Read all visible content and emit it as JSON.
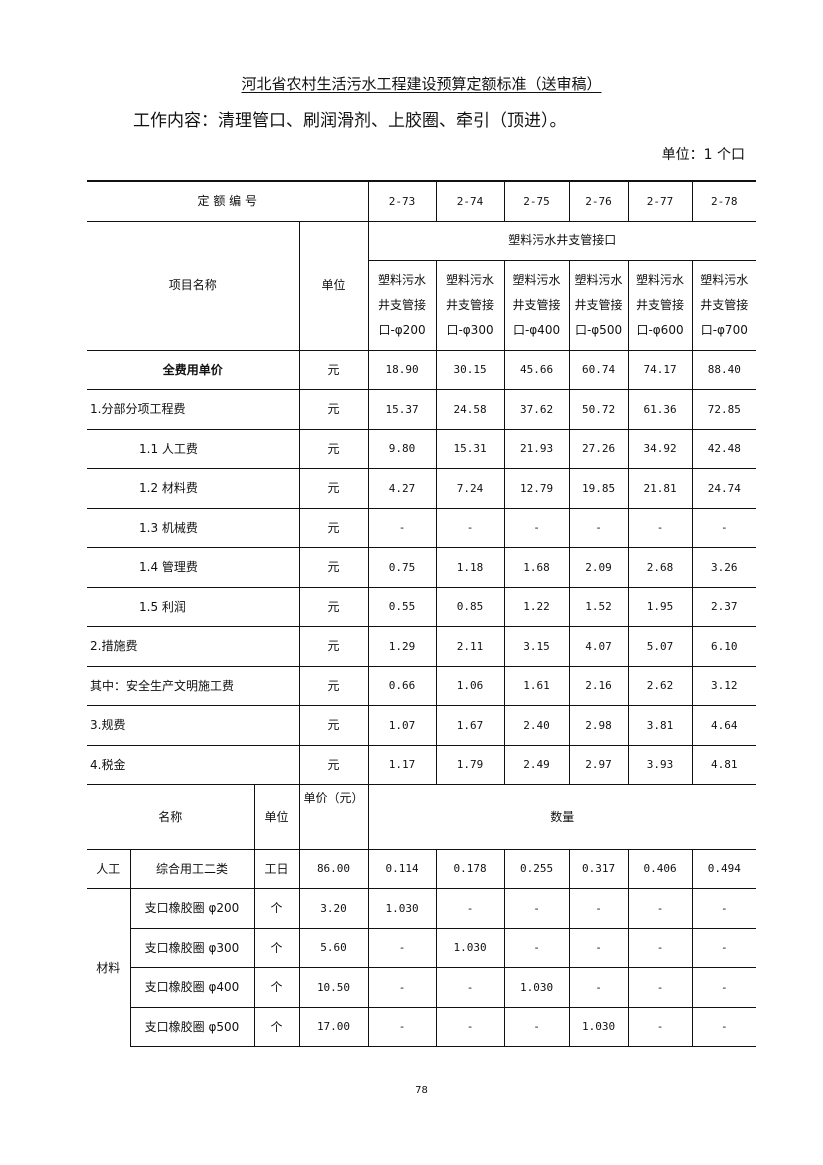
{
  "title": "河北省农村生活污水工程建设预算定额标准（送审稿）",
  "work_content": "工作内容：清理管口、刷润滑剂、上胶圈、牵引（顶进）。",
  "unit_note": "单位：1 个口",
  "header": {
    "code_label": "定 额 编 号",
    "codes": [
      "2-73",
      "2-74",
      "2-75",
      "2-76",
      "2-77",
      "2-78"
    ],
    "item_label": "项目名称",
    "unit_label": "单位",
    "group_label": "塑料污水井支管接口",
    "sub_items": [
      [
        "塑料污水",
        "井支管接",
        "口-φ200"
      ],
      [
        "塑料污水",
        "井支管接",
        "口-φ300"
      ],
      [
        "塑料污水",
        "井支管接",
        "口-φ400"
      ],
      [
        "塑料污水",
        "井支管接",
        "口-φ500"
      ],
      [
        "塑料污水",
        "井支管接",
        "口-φ600"
      ],
      [
        "塑料污水",
        "井支管接",
        "口-φ700"
      ]
    ]
  },
  "cost_rows": [
    {
      "name": "全费用单价",
      "unit": "元",
      "values": [
        "18.90",
        "30.15",
        "45.66",
        "60.74",
        "74.17",
        "88.40"
      ]
    },
    {
      "name": "1.分部分项工程费",
      "unit": "元",
      "values": [
        "15.37",
        "24.58",
        "37.62",
        "50.72",
        "61.36",
        "72.85"
      ]
    },
    {
      "name": "1.1 人工费",
      "unit": "元",
      "values": [
        "9.80",
        "15.31",
        "21.93",
        "27.26",
        "34.92",
        "42.48"
      ]
    },
    {
      "name": "1.2 材料费",
      "unit": "元",
      "values": [
        "4.27",
        "7.24",
        "12.79",
        "19.85",
        "21.81",
        "24.74"
      ]
    },
    {
      "name": "1.3  机械费",
      "unit": "元",
      "values": [
        "-",
        "-",
        "-",
        "-",
        "-",
        "-"
      ]
    },
    {
      "name": "1.4 管理费",
      "unit": "元",
      "values": [
        "0.75",
        "1.18",
        "1.68",
        "2.09",
        "2.68",
        "3.26"
      ]
    },
    {
      "name": "1.5 利润",
      "unit": "元",
      "values": [
        "0.55",
        "0.85",
        "1.22",
        "1.52",
        "1.95",
        "2.37"
      ]
    },
    {
      "name": "2.措施费",
      "unit": "元",
      "values": [
        "1.29",
        "2.11",
        "3.15",
        "4.07",
        "5.07",
        "6.10"
      ]
    },
    {
      "name": "其中：安全生产文明施工费",
      "unit": "元",
      "values": [
        "0.66",
        "1.06",
        "1.61",
        "2.16",
        "2.62",
        "3.12"
      ]
    },
    {
      "name": "3.规费",
      "unit": "元",
      "values": [
        "1.07",
        "1.67",
        "2.40",
        "2.98",
        "3.81",
        "4.64"
      ]
    },
    {
      "name": "4.税金",
      "unit": "元",
      "values": [
        "1.17",
        "1.79",
        "2.49",
        "2.97",
        "3.93",
        "4.81"
      ]
    }
  ],
  "resource_header": {
    "name": "名称",
    "unit": "单位",
    "price": "单价（元）",
    "quantity": "数量"
  },
  "labor": {
    "category": "人工",
    "name": "综合用工二类",
    "unit": "工日",
    "price": "86.00",
    "values": [
      "0.114",
      "0.178",
      "0.255",
      "0.317",
      "0.406",
      "0.494"
    ]
  },
  "materials": {
    "category": "材料",
    "rows": [
      {
        "name": "支口橡胶圈 φ200",
        "unit": "个",
        "price": "3.20",
        "values": [
          "1.030",
          "-",
          "-",
          "-",
          "-",
          "-"
        ]
      },
      {
        "name": "支口橡胶圈 φ300",
        "unit": "个",
        "price": "5.60",
        "values": [
          "-",
          "1.030",
          "-",
          "-",
          "-",
          "-"
        ]
      },
      {
        "name": "支口橡胶圈 φ400",
        "unit": "个",
        "price": "10.50",
        "values": [
          "-",
          "-",
          "1.030",
          "-",
          "-",
          "-"
        ]
      },
      {
        "name": "支口橡胶圈 φ500",
        "unit": "个",
        "price": "17.00",
        "values": [
          "-",
          "-",
          "-",
          "1.030",
          "-",
          "-"
        ]
      }
    ]
  },
  "page_number": "78"
}
